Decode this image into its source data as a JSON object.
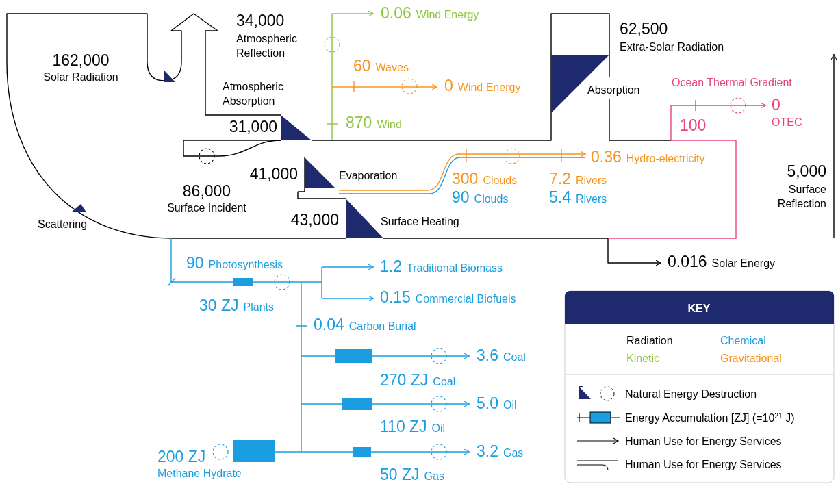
{
  "chart_data": {
    "type": "other",
    "legend_title": "KEY",
    "categories": [
      "Solar Radiation",
      "Atmospheric Reflection",
      "Extra-Solar Radiation",
      "Atmospheric Absorption",
      "Evaporation",
      "Surface Incident",
      "Surface Heating",
      "Surface Reflection",
      "Solar Energy",
      "Wind Energy",
      "Wind",
      "Waves",
      "Wind Energy",
      "Clouds",
      "Rivers",
      "Hydro-electricity",
      "Clouds",
      "Rivers",
      "Photosynthesis",
      "Plants",
      "Traditional Biomass",
      "Commercial Biofuels",
      "Carbon Burial",
      "Coal",
      "Coal",
      "Oil",
      "Oil",
      "Gas",
      "Gas",
      "Methane Hydrate",
      "OTEC"
    ],
    "series": [
      {
        "name": "Radiation",
        "color": "#000000",
        "values": [
          162000,
          34000,
          62500,
          31000,
          41000,
          86000,
          43000,
          5000,
          0.016,
          null,
          null,
          null,
          null,
          null,
          null,
          null,
          null,
          null,
          null,
          null,
          null,
          null,
          null,
          null,
          null,
          null,
          null,
          null,
          null,
          null,
          null
        ],
        "value_labels": [
          "162,000",
          "34,000",
          "62,500",
          "31,000",
          "41,000",
          "86,000",
          "43,000",
          "5,000",
          "0.016",
          null,
          null,
          null,
          null,
          null,
          null,
          null,
          null,
          null,
          null,
          null,
          null,
          null,
          null,
          null,
          null,
          null,
          null,
          null,
          null,
          null,
          null
        ]
      },
      {
        "name": "Kinetic",
        "color": "#8dc63f",
        "values": [
          null,
          null,
          null,
          null,
          null,
          null,
          null,
          null,
          null,
          0.06,
          870,
          null,
          null,
          null,
          null,
          null,
          null,
          null,
          null,
          null,
          null,
          null,
          null,
          null,
          null,
          null,
          null,
          null,
          null,
          null,
          null
        ],
        "value_labels": [
          null,
          null,
          null,
          null,
          null,
          null,
          null,
          null,
          null,
          "0.06",
          "870",
          null,
          null,
          null,
          null,
          null,
          null,
          null,
          null,
          null,
          null,
          null,
          null,
          null,
          null,
          null,
          null,
          null,
          null,
          null,
          null
        ]
      },
      {
        "name": "Chemical",
        "color": "#1a9ee0",
        "values": [
          null,
          null,
          null,
          null,
          null,
          null,
          null,
          null,
          null,
          null,
          null,
          null,
          null,
          null,
          null,
          null,
          90,
          5.4,
          90,
          30,
          1.2,
          0.15,
          0.04,
          3.6,
          270,
          5.0,
          110,
          3.2,
          50,
          200,
          null
        ],
        "value_labels": [
          null,
          null,
          null,
          null,
          null,
          null,
          null,
          null,
          null,
          null,
          null,
          null,
          null,
          null,
          null,
          null,
          "90",
          "5.4",
          "90",
          "30 ZJ",
          "1.2",
          "0.15",
          "0.04",
          "3.6",
          "270 ZJ",
          "5.0",
          "110 ZJ",
          "3.2",
          "50 ZJ",
          "200 ZJ",
          null
        ]
      },
      {
        "name": "Gravitational",
        "color": "#f7941d",
        "values": [
          null,
          null,
          null,
          null,
          null,
          null,
          null,
          null,
          null,
          null,
          null,
          60,
          0,
          300,
          7.2,
          0.36,
          null,
          null,
          null,
          null,
          null,
          null,
          null,
          null,
          null,
          null,
          null,
          null,
          null,
          null,
          null
        ],
        "value_labels": [
          null,
          null,
          null,
          null,
          null,
          null,
          null,
          null,
          null,
          null,
          null,
          "60",
          "0",
          "300",
          "7.2",
          "0.36",
          null,
          null,
          null,
          null,
          null,
          null,
          null,
          null,
          null,
          null,
          null,
          null,
          null,
          null,
          null
        ]
      },
      {
        "color": "#e8457a",
        "values": [
          null,
          null,
          null,
          null,
          null,
          null,
          null,
          null,
          null,
          null,
          null,
          null,
          null,
          null,
          null,
          null,
          null,
          null,
          null,
          null,
          null,
          null,
          null,
          null,
          null,
          null,
          null,
          null,
          null,
          null,
          0
        ],
        "value_labels": [
          null,
          null,
          null,
          null,
          null,
          null,
          null,
          null,
          null,
          null,
          null,
          null,
          null,
          null,
          null,
          null,
          null,
          null,
          null,
          null,
          null,
          null,
          null,
          null,
          null,
          null,
          null,
          null,
          null,
          null,
          "0"
        ]
      }
    ],
    "annotations": [
      "Absorption",
      "Scattering",
      "Natural Energy Destruction",
      "Energy Accumulation [ZJ] (=10$^{21}$ J)",
      "Human Use for Energy Services",
      "Human Use for Energy Services",
      "Ocean Thermal Gradient",
      "100"
    ]
  }
}
